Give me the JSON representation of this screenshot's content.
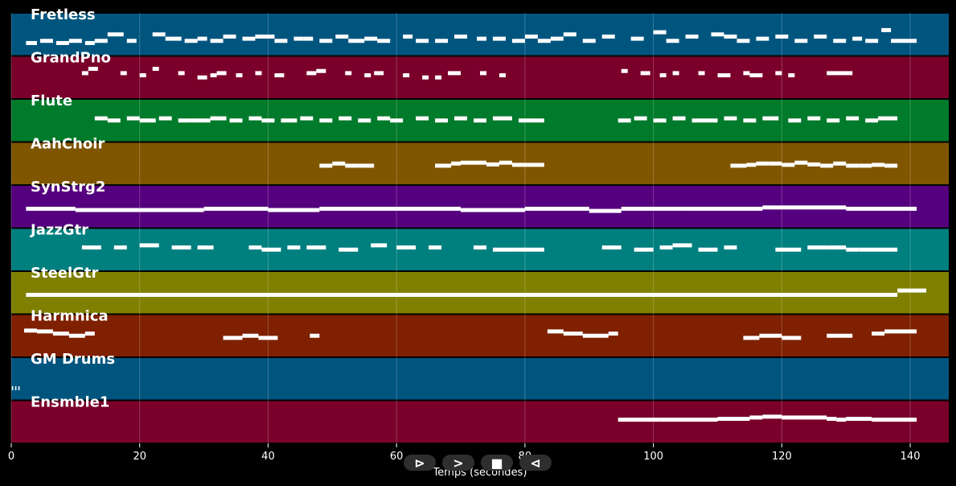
{
  "chart_data": {
    "type": "piano-roll",
    "xlabel": "Temps (secondes)",
    "xlim": [
      0,
      146
    ],
    "xticks": [
      0,
      20,
      40,
      60,
      80,
      100,
      120,
      140
    ],
    "grid": true,
    "tracks": [
      {
        "name": "Fretless",
        "color": "#00557f",
        "notes": [
          [
            2.3,
            4,
            0.3
          ],
          [
            4.5,
            6.5,
            0.35
          ],
          [
            7,
            9,
            0.3
          ],
          [
            9,
            11,
            0.35
          ],
          [
            11.5,
            13,
            0.3
          ],
          [
            13,
            15,
            0.35
          ],
          [
            15,
            17.5,
            0.5
          ],
          [
            18,
            19.5,
            0.35
          ],
          [
            22,
            24,
            0.5
          ],
          [
            24,
            26.5,
            0.4
          ],
          [
            27,
            29,
            0.35
          ],
          [
            29,
            30.5,
            0.4
          ],
          [
            31,
            33,
            0.35
          ],
          [
            33,
            35,
            0.45
          ],
          [
            36,
            38,
            0.4
          ],
          [
            38,
            41,
            0.45
          ],
          [
            41,
            43,
            0.35
          ],
          [
            44,
            45.5,
            0.4
          ],
          [
            45.5,
            47,
            0.4
          ],
          [
            48,
            50,
            0.35
          ],
          [
            50.5,
            52.5,
            0.45
          ],
          [
            52.5,
            55,
            0.35
          ],
          [
            55,
            57,
            0.4
          ],
          [
            57,
            59,
            0.35
          ],
          [
            61,
            62.5,
            0.45
          ],
          [
            63,
            65,
            0.35
          ],
          [
            66,
            68,
            0.35
          ],
          [
            69,
            71,
            0.45
          ],
          [
            72.5,
            74,
            0.4
          ],
          [
            75,
            77,
            0.4
          ],
          [
            78,
            80,
            0.35
          ],
          [
            80,
            82,
            0.45
          ],
          [
            82,
            84,
            0.35
          ],
          [
            84,
            86,
            0.4
          ],
          [
            86,
            88,
            0.5
          ],
          [
            89,
            91,
            0.35
          ],
          [
            92,
            94,
            0.45
          ],
          [
            96.5,
            98.5,
            0.4
          ],
          [
            100,
            102,
            0.55
          ],
          [
            102,
            104,
            0.35
          ],
          [
            105,
            107,
            0.45
          ],
          [
            109,
            111,
            0.5
          ],
          [
            111,
            113,
            0.45
          ],
          [
            113,
            115,
            0.35
          ],
          [
            116,
            118,
            0.4
          ],
          [
            119,
            121,
            0.45
          ],
          [
            122,
            124,
            0.35
          ],
          [
            125,
            127,
            0.45
          ],
          [
            128,
            130,
            0.35
          ],
          [
            131,
            132.5,
            0.4
          ],
          [
            133,
            135,
            0.35
          ],
          [
            135.5,
            137,
            0.6
          ],
          [
            137,
            141,
            0.35
          ]
        ]
      },
      {
        "name": "GrandPno",
        "color": "#7a002b",
        "notes": [
          [
            11,
            12,
            0.6
          ],
          [
            12,
            13.5,
            0.7
          ],
          [
            17,
            18,
            0.6
          ],
          [
            20,
            21,
            0.55
          ],
          [
            22,
            23,
            0.7
          ],
          [
            26,
            27,
            0.6
          ],
          [
            29,
            30.5,
            0.5
          ],
          [
            31,
            32,
            0.55
          ],
          [
            32,
            33.5,
            0.6
          ],
          [
            35,
            36,
            0.55
          ],
          [
            38,
            39,
            0.6
          ],
          [
            41,
            42.5,
            0.55
          ],
          [
            46,
            47.5,
            0.6
          ],
          [
            47.5,
            49,
            0.65
          ],
          [
            52,
            53,
            0.6
          ],
          [
            55,
            56,
            0.55
          ],
          [
            56.5,
            58,
            0.6
          ],
          [
            61,
            62,
            0.55
          ],
          [
            64,
            65,
            0.5
          ],
          [
            66,
            67,
            0.5
          ],
          [
            68,
            70,
            0.6
          ],
          [
            73,
            74,
            0.6
          ],
          [
            76,
            77,
            0.55
          ],
          [
            95,
            96,
            0.65
          ],
          [
            98,
            99.5,
            0.6
          ],
          [
            101,
            102,
            0.55
          ],
          [
            103,
            104,
            0.6
          ],
          [
            107,
            108,
            0.6
          ],
          [
            110,
            112,
            0.55
          ],
          [
            114,
            115,
            0.6
          ],
          [
            115,
            117,
            0.55
          ],
          [
            119,
            120,
            0.6
          ],
          [
            121,
            122,
            0.55
          ],
          [
            127,
            131,
            0.6
          ]
        ]
      },
      {
        "name": "Flute",
        "color": "#007a2b",
        "notes": [
          [
            13,
            15,
            0.55
          ],
          [
            15,
            17,
            0.5
          ],
          [
            18,
            20,
            0.55
          ],
          [
            20,
            22.5,
            0.5
          ],
          [
            23,
            25,
            0.55
          ],
          [
            26,
            28,
            0.5
          ],
          [
            28,
            31,
            0.5
          ],
          [
            31,
            33.5,
            0.55
          ],
          [
            34,
            36,
            0.5
          ],
          [
            37,
            39,
            0.55
          ],
          [
            39,
            41,
            0.5
          ],
          [
            42,
            44.5,
            0.5
          ],
          [
            45,
            47,
            0.55
          ],
          [
            48,
            50,
            0.5
          ],
          [
            51,
            53,
            0.55
          ],
          [
            54,
            56,
            0.5
          ],
          [
            57,
            59,
            0.55
          ],
          [
            59,
            61,
            0.5
          ],
          [
            63,
            65,
            0.55
          ],
          [
            66,
            68,
            0.5
          ],
          [
            69,
            71,
            0.55
          ],
          [
            72,
            74,
            0.5
          ],
          [
            75,
            78,
            0.55
          ],
          [
            79,
            83,
            0.5
          ],
          [
            94.5,
            96.5,
            0.5
          ],
          [
            97,
            99,
            0.55
          ],
          [
            100,
            102,
            0.5
          ],
          [
            103,
            105,
            0.55
          ],
          [
            106,
            108,
            0.5
          ],
          [
            108,
            110,
            0.5
          ],
          [
            111,
            113,
            0.55
          ],
          [
            114,
            116,
            0.5
          ],
          [
            117,
            119.5,
            0.55
          ],
          [
            121,
            123,
            0.5
          ],
          [
            124,
            126,
            0.55
          ],
          [
            127,
            129,
            0.5
          ],
          [
            130,
            132,
            0.55
          ],
          [
            133,
            135,
            0.5
          ],
          [
            135,
            138,
            0.55
          ]
        ]
      },
      {
        "name": "AahChoir",
        "color": "#7f5500",
        "notes": [
          [
            48,
            50,
            0.45
          ],
          [
            50,
            52,
            0.5
          ],
          [
            52,
            54,
            0.45
          ],
          [
            54,
            56.5,
            0.45
          ],
          [
            66,
            68.5,
            0.45
          ],
          [
            68.5,
            70,
            0.5
          ],
          [
            70,
            74,
            0.52
          ],
          [
            74,
            76,
            0.48
          ],
          [
            76,
            78,
            0.52
          ],
          [
            78,
            80.5,
            0.47
          ],
          [
            80.5,
            83,
            0.47
          ],
          [
            112,
            114.5,
            0.45
          ],
          [
            114.5,
            116,
            0.47
          ],
          [
            116,
            118,
            0.5
          ],
          [
            118,
            120,
            0.5
          ],
          [
            120,
            122,
            0.47
          ],
          [
            122,
            124,
            0.52
          ],
          [
            124,
            126,
            0.48
          ],
          [
            126,
            128,
            0.45
          ],
          [
            128,
            130,
            0.5
          ],
          [
            130,
            132,
            0.45
          ],
          [
            132,
            134,
            0.45
          ],
          [
            134,
            136,
            0.47
          ],
          [
            136,
            138,
            0.45
          ]
        ]
      },
      {
        "name": "SynStrg2",
        "color": "#55007f",
        "notes": [
          [
            2.3,
            10,
            0.45
          ],
          [
            10,
            20,
            0.42
          ],
          [
            20,
            30,
            0.42
          ],
          [
            30,
            40,
            0.45
          ],
          [
            40,
            48,
            0.42
          ],
          [
            48,
            60,
            0.45
          ],
          [
            60,
            70,
            0.45
          ],
          [
            70,
            80,
            0.42
          ],
          [
            80,
            90,
            0.45
          ],
          [
            90,
            95,
            0.4
          ],
          [
            95,
            105,
            0.45
          ],
          [
            105,
            117,
            0.45
          ],
          [
            117,
            130,
            0.48
          ],
          [
            130,
            141,
            0.45
          ]
        ]
      },
      {
        "name": "JazzGtr",
        "color": "#007f7f",
        "notes": [
          [
            11,
            14,
            0.55
          ],
          [
            16,
            18,
            0.55
          ],
          [
            20,
            23,
            0.6
          ],
          [
            25,
            28,
            0.55
          ],
          [
            29,
            31.5,
            0.55
          ],
          [
            37,
            39,
            0.55
          ],
          [
            39,
            42,
            0.5
          ],
          [
            43,
            45,
            0.55
          ],
          [
            46,
            49,
            0.55
          ],
          [
            51,
            54,
            0.5
          ],
          [
            56,
            58.5,
            0.6
          ],
          [
            60,
            63,
            0.55
          ],
          [
            65,
            67,
            0.55
          ],
          [
            72,
            74,
            0.55
          ],
          [
            75,
            79,
            0.5
          ],
          [
            79,
            83,
            0.5
          ],
          [
            92,
            95,
            0.55
          ],
          [
            97,
            100,
            0.5
          ],
          [
            101,
            103,
            0.55
          ],
          [
            103,
            106,
            0.6
          ],
          [
            107,
            110,
            0.5
          ],
          [
            111,
            113,
            0.55
          ],
          [
            119,
            123,
            0.5
          ],
          [
            124,
            127,
            0.55
          ],
          [
            127,
            130,
            0.55
          ],
          [
            130,
            132,
            0.5
          ],
          [
            132,
            138,
            0.5
          ]
        ]
      },
      {
        "name": "SteelGtr",
        "color": "#7f7f00",
        "notes": [
          [
            2.3,
            20,
            0.45
          ],
          [
            20,
            40,
            0.45
          ],
          [
            40,
            60,
            0.45
          ],
          [
            60,
            80,
            0.45
          ],
          [
            80,
            100,
            0.45
          ],
          [
            100,
            120,
            0.45
          ],
          [
            120,
            138,
            0.45
          ],
          [
            138,
            142.5,
            0.55
          ]
        ]
      },
      {
        "name": "Harmnica",
        "color": "#7f2000",
        "notes": [
          [
            2,
            4,
            0.62
          ],
          [
            4,
            6.5,
            0.6
          ],
          [
            6.5,
            9,
            0.55
          ],
          [
            9,
            11.5,
            0.5
          ],
          [
            11.5,
            13,
            0.55
          ],
          [
            33,
            36,
            0.45
          ],
          [
            36,
            38.5,
            0.5
          ],
          [
            38.5,
            41.5,
            0.45
          ],
          [
            46.5,
            48,
            0.5
          ],
          [
            83.5,
            86,
            0.6
          ],
          [
            86,
            89,
            0.55
          ],
          [
            89,
            93,
            0.5
          ],
          [
            93,
            94.5,
            0.55
          ],
          [
            114,
            116.5,
            0.45
          ],
          [
            116.5,
            120,
            0.5
          ],
          [
            120,
            123,
            0.45
          ],
          [
            127,
            131,
            0.5
          ],
          [
            134,
            136,
            0.55
          ],
          [
            136,
            141,
            0.6
          ]
        ]
      },
      {
        "name": "GM Drums",
        "color": "#00557f",
        "notes": [
          [
            0.1,
            0.3,
            0.28
          ],
          [
            0.6,
            0.8,
            0.28
          ],
          [
            1.1,
            1.3,
            0.28
          ]
        ]
      },
      {
        "name": "Ensmble1",
        "color": "#7a002b",
        "notes": [
          [
            94.5,
            101,
            0.55
          ],
          [
            101,
            110,
            0.55
          ],
          [
            110,
            115,
            0.57
          ],
          [
            115,
            117,
            0.6
          ],
          [
            117,
            120,
            0.62
          ],
          [
            120,
            127,
            0.6
          ],
          [
            127,
            128.5,
            0.57
          ],
          [
            128.5,
            130,
            0.55
          ],
          [
            130,
            134,
            0.57
          ],
          [
            134,
            141,
            0.55
          ]
        ]
      }
    ]
  },
  "controls": {
    "play_label": "⊳",
    "next_label": ">",
    "stop_label": "■",
    "prev_label": "⊲"
  }
}
